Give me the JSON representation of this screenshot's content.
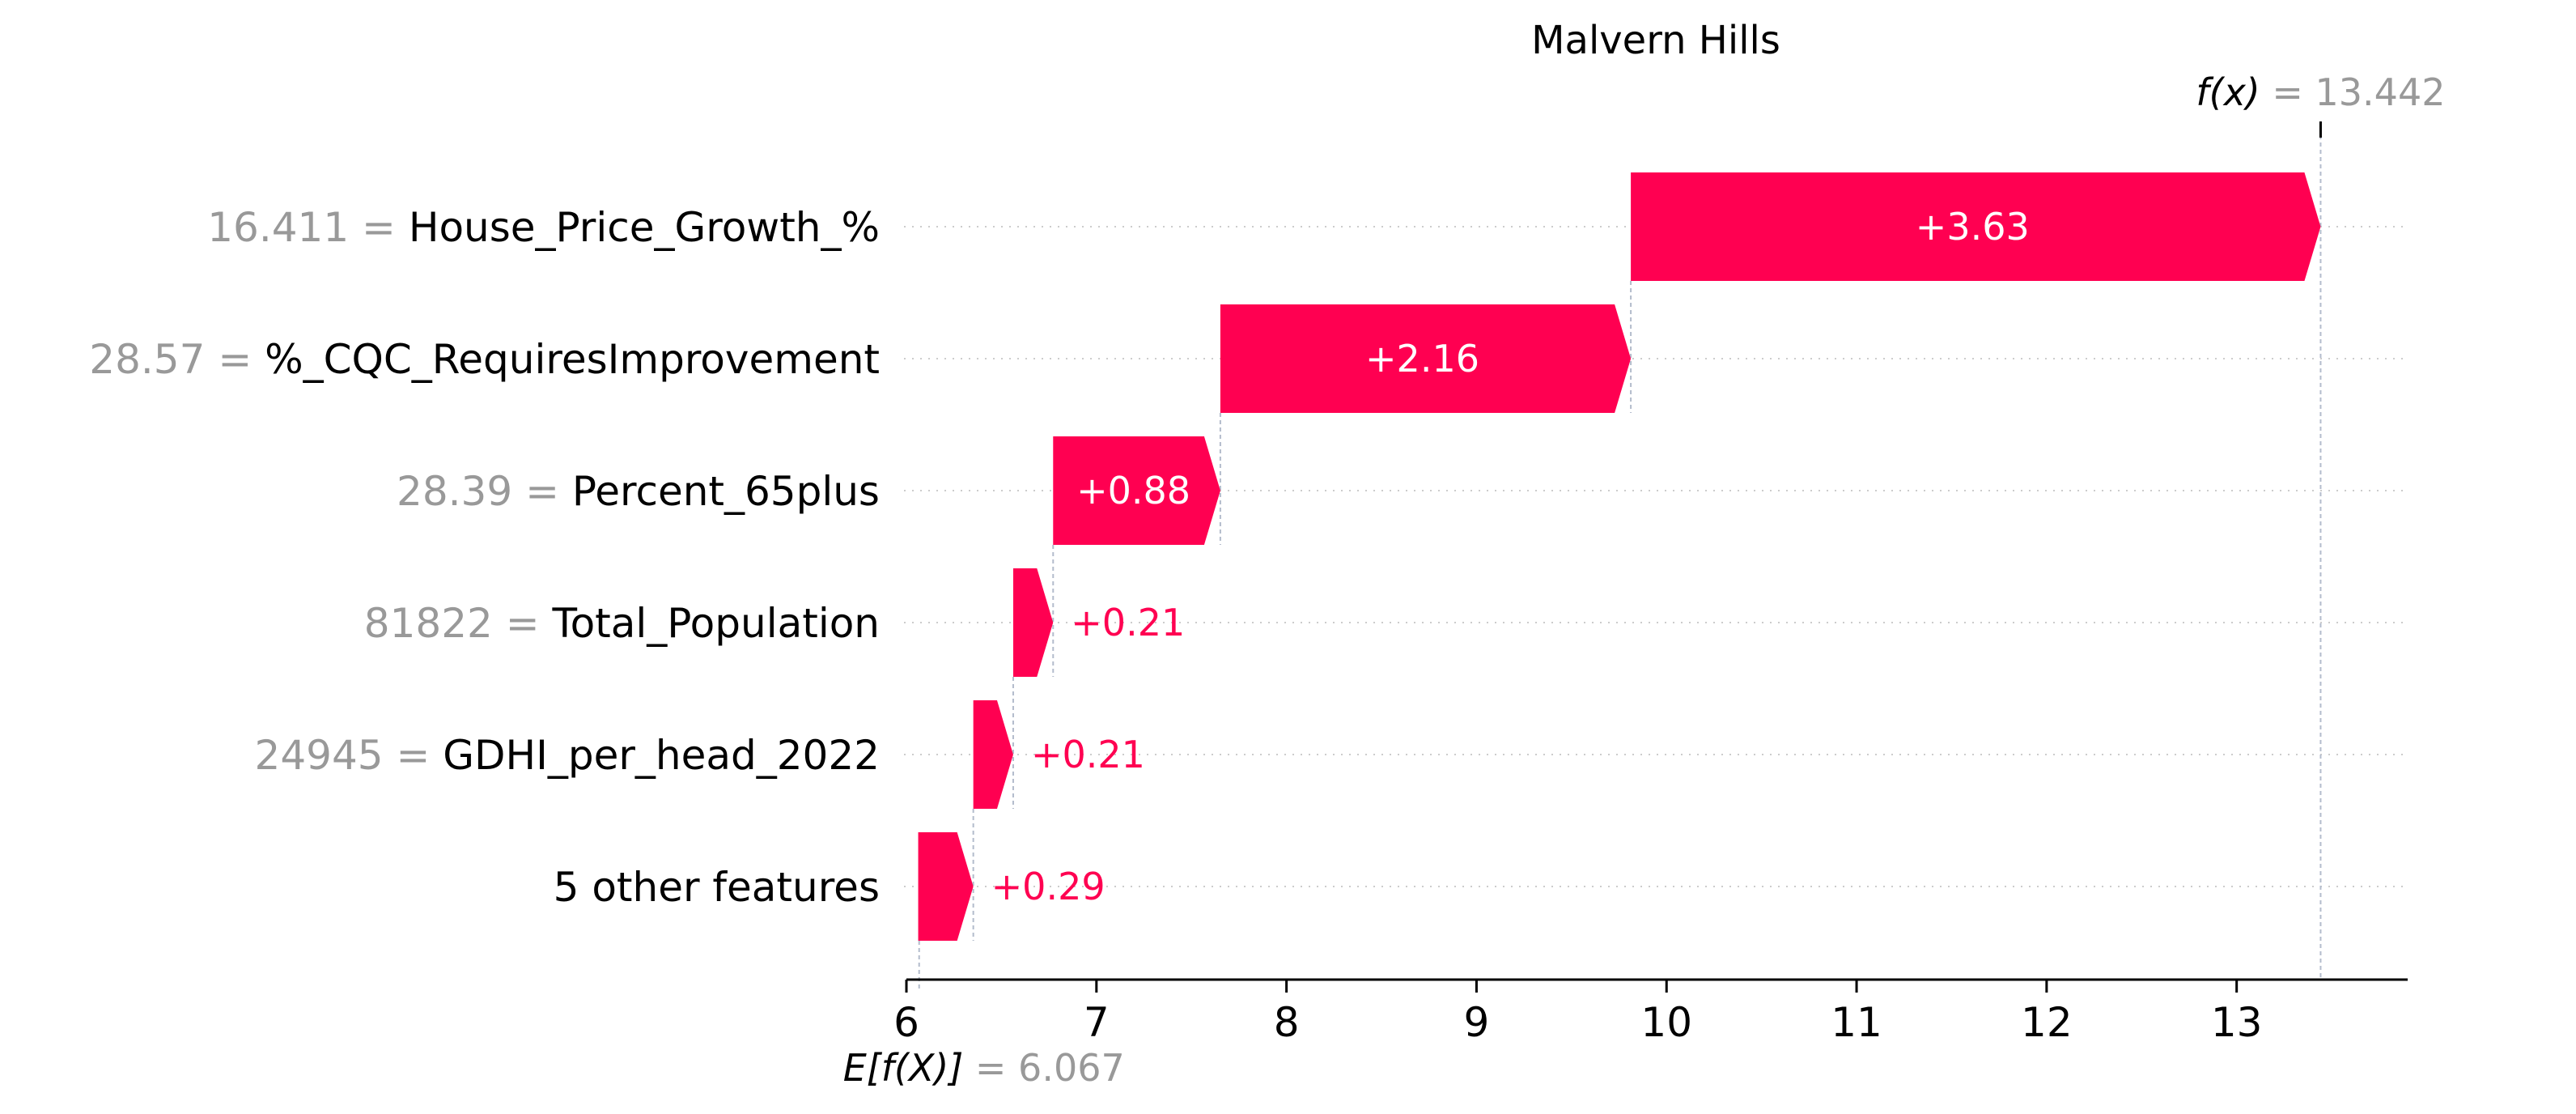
{
  "chart_data": {
    "type": "waterfall",
    "title": "Malvern Hills",
    "base_value": 6.067,
    "output_value": 13.442,
    "fx_label_html": "f(x)",
    "fx_value_text": "= 13.442",
    "ex_label": "E[f(X)]",
    "ex_value_text": "= 6.067",
    "xlim": [
      6,
      13.9
    ],
    "xticks": [
      6,
      7,
      8,
      9,
      10,
      11,
      12,
      13
    ],
    "xtick_labels": [
      "6",
      "7",
      "8",
      "9",
      "10",
      "11",
      "12",
      "13"
    ],
    "positive_color": "#ff0051",
    "features": [
      {
        "value_text": "16.411 =",
        "name": "House_Price_Growth_%",
        "contribution": 3.63,
        "label": "+3.63"
      },
      {
        "value_text": "28.57 =",
        "name": "%_CQC_RequiresImprovement",
        "contribution": 2.16,
        "label": "+2.16"
      },
      {
        "value_text": "28.39 =",
        "name": "Percent_65plus",
        "contribution": 0.88,
        "label": "+0.88"
      },
      {
        "value_text": "81822 =",
        "name": "Total_Population",
        "contribution": 0.21,
        "label": "+0.21"
      },
      {
        "value_text": "24945 =",
        "name": "GDHI_per_head_2022",
        "contribution": 0.21,
        "label": "+0.21"
      },
      {
        "value_text": "",
        "name": "5 other features",
        "contribution": 0.29,
        "label": "+0.29"
      }
    ]
  }
}
